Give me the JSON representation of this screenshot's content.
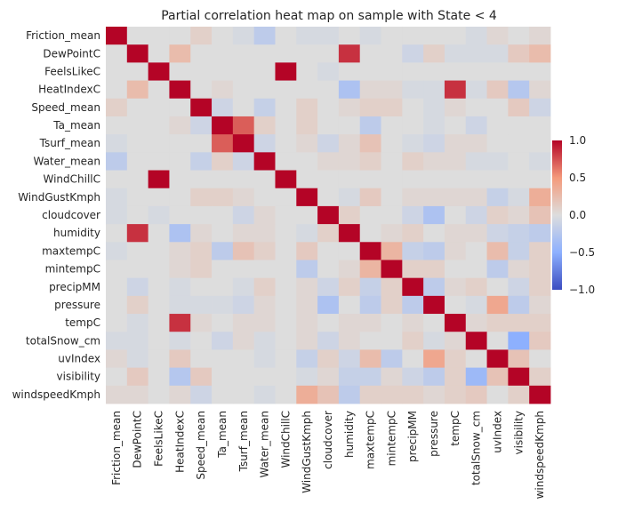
{
  "chart_data": {
    "type": "heatmap",
    "title": "Partial correlation heat map on sample with State < 4",
    "labels": [
      "Friction_mean",
      "DewPointC",
      "FeelsLikeC",
      "HeatIndexC",
      "Speed_mean",
      "Ta_mean",
      "Tsurf_mean",
      "Water_mean",
      "WindChillC",
      "WindGustKmph",
      "cloudcover",
      "humidity",
      "maxtempC",
      "mintempC",
      "precipMM",
      "pressure",
      "tempC",
      "totalSnow_cm",
      "uvIndex",
      "visibility",
      "windspeedKmph"
    ],
    "matrix": [
      [
        1.0,
        0.0,
        0.0,
        0.0,
        0.1,
        0.0,
        -0.05,
        -0.2,
        0.0,
        -0.05,
        -0.05,
        0.0,
        -0.05,
        0.0,
        0.0,
        0.0,
        0.0,
        -0.05,
        0.05,
        0.0,
        0.05
      ],
      [
        0.0,
        1.0,
        0.0,
        0.25,
        0.0,
        0.0,
        0.0,
        0.0,
        0.0,
        0.0,
        0.0,
        0.85,
        0.0,
        0.0,
        -0.1,
        0.1,
        -0.05,
        -0.05,
        -0.05,
        0.15,
        0.25
      ],
      [
        0.0,
        0.0,
        1.0,
        0.0,
        0.0,
        0.0,
        0.0,
        0.0,
        1.0,
        0.0,
        -0.05,
        0.0,
        0.0,
        0.0,
        0.0,
        0.0,
        0.0,
        0.0,
        0.0,
        0.0,
        0.0
      ],
      [
        0.0,
        0.25,
        0.0,
        1.0,
        0.0,
        0.05,
        0.0,
        0.0,
        0.0,
        0.0,
        0.0,
        -0.3,
        0.05,
        0.05,
        -0.05,
        -0.05,
        0.85,
        -0.05,
        0.15,
        -0.25,
        0.05
      ],
      [
        0.1,
        0.0,
        0.0,
        0.0,
        1.0,
        -0.1,
        0.0,
        -0.15,
        0.0,
        0.1,
        0.0,
        0.05,
        0.1,
        0.1,
        0.0,
        -0.05,
        0.05,
        0.0,
        0.0,
        0.15,
        -0.1
      ],
      [
        0.0,
        0.0,
        0.0,
        0.05,
        -0.1,
        1.0,
        0.7,
        0.1,
        0.0,
        0.1,
        0.0,
        0.0,
        -0.2,
        0.0,
        0.0,
        -0.05,
        0.0,
        -0.1,
        0.0,
        0.0,
        0.0
      ],
      [
        -0.05,
        0.0,
        0.0,
        0.0,
        0.0,
        0.7,
        1.0,
        -0.1,
        0.0,
        0.05,
        -0.1,
        0.05,
        0.2,
        0.0,
        -0.05,
        -0.1,
        0.05,
        0.05,
        0.0,
        0.0,
        0.0
      ],
      [
        -0.2,
        0.0,
        0.0,
        0.0,
        -0.15,
        0.1,
        -0.1,
        1.0,
        0.0,
        0.0,
        0.05,
        0.05,
        0.1,
        0.0,
        0.1,
        0.05,
        0.05,
        -0.05,
        -0.05,
        0.0,
        -0.05
      ],
      [
        0.0,
        0.0,
        1.0,
        0.0,
        0.0,
        0.0,
        0.0,
        0.0,
        1.0,
        0.0,
        0.0,
        0.0,
        0.0,
        0.0,
        0.0,
        0.0,
        0.0,
        0.0,
        0.0,
        0.0,
        0.0
      ],
      [
        -0.05,
        0.0,
        0.0,
        0.0,
        0.1,
        0.1,
        0.05,
        0.0,
        0.0,
        1.0,
        0.0,
        -0.05,
        0.15,
        0.0,
        0.05,
        0.05,
        0.05,
        0.05,
        -0.15,
        -0.05,
        0.35
      ],
      [
        -0.05,
        0.0,
        -0.05,
        0.0,
        0.0,
        0.0,
        -0.1,
        0.05,
        0.0,
        0.0,
        1.0,
        0.1,
        0.0,
        0.0,
        -0.1,
        -0.3,
        0.0,
        -0.1,
        0.1,
        0.05,
        0.2
      ],
      [
        0.0,
        0.85,
        0.0,
        -0.3,
        0.05,
        0.0,
        0.05,
        0.05,
        0.0,
        -0.05,
        0.1,
        1.0,
        0.0,
        0.05,
        0.1,
        0.0,
        0.05,
        0.05,
        -0.1,
        -0.15,
        -0.2
      ],
      [
        -0.05,
        0.0,
        0.0,
        0.05,
        0.1,
        -0.2,
        0.2,
        0.1,
        0.0,
        0.15,
        0.0,
        0.0,
        1.0,
        0.3,
        -0.15,
        -0.2,
        0.05,
        0.0,
        0.25,
        -0.15,
        0.1
      ],
      [
        0.0,
        0.0,
        0.0,
        0.05,
        0.1,
        0.0,
        0.0,
        0.0,
        0.0,
        -0.2,
        0.0,
        0.05,
        0.3,
        1.0,
        0.1,
        0.1,
        0.0,
        0.0,
        -0.2,
        0.05,
        0.1
      ],
      [
        0.0,
        -0.1,
        0.0,
        -0.05,
        0.0,
        0.0,
        -0.05,
        0.1,
        0.0,
        0.05,
        -0.1,
        0.1,
        -0.15,
        0.1,
        1.0,
        -0.2,
        0.05,
        0.1,
        0.0,
        -0.1,
        0.1
      ],
      [
        0.0,
        0.1,
        0.0,
        -0.05,
        -0.05,
        -0.05,
        -0.1,
        0.05,
        0.0,
        0.05,
        -0.3,
        0.0,
        -0.2,
        0.1,
        -0.2,
        1.0,
        0.0,
        -0.05,
        0.4,
        -0.2,
        0.05
      ],
      [
        0.0,
        -0.05,
        0.0,
        0.85,
        0.05,
        0.0,
        0.05,
        0.05,
        0.0,
        0.05,
        0.0,
        0.05,
        0.05,
        0.0,
        0.05,
        0.0,
        1.0,
        0.05,
        0.1,
        0.1,
        0.1
      ],
      [
        -0.05,
        -0.05,
        0.0,
        -0.05,
        0.0,
        -0.1,
        0.05,
        -0.05,
        0.0,
        0.05,
        -0.1,
        0.05,
        0.0,
        0.0,
        0.1,
        -0.05,
        0.05,
        1.0,
        0.0,
        -0.5,
        0.15
      ],
      [
        0.05,
        -0.05,
        0.0,
        0.15,
        0.0,
        0.0,
        0.0,
        -0.05,
        0.0,
        -0.15,
        0.1,
        -0.1,
        0.25,
        -0.2,
        0.0,
        0.4,
        0.1,
        0.0,
        1.0,
        0.2,
        0.0
      ],
      [
        0.0,
        0.15,
        0.0,
        -0.25,
        0.15,
        0.0,
        0.0,
        0.0,
        0.0,
        -0.05,
        0.05,
        -0.15,
        -0.15,
        0.05,
        -0.1,
        -0.2,
        0.1,
        -0.4,
        0.2,
        1.0,
        0.1
      ],
      [
        0.05,
        0.05,
        0.0,
        0.05,
        -0.1,
        0.0,
        0.0,
        -0.05,
        0.0,
        0.35,
        0.2,
        -0.2,
        0.1,
        0.1,
        0.1,
        0.05,
        0.1,
        0.15,
        0.0,
        0.1,
        1.0
      ]
    ],
    "colorbar": {
      "colormap": "coolwarm",
      "range": [
        -1.0,
        1.0
      ],
      "ticks": [
        "1.0",
        "0.5",
        "0.0",
        "−0.5",
        "−1.0"
      ],
      "tick_values": [
        1.0,
        0.5,
        0.0,
        -0.5,
        -1.0
      ]
    }
  }
}
